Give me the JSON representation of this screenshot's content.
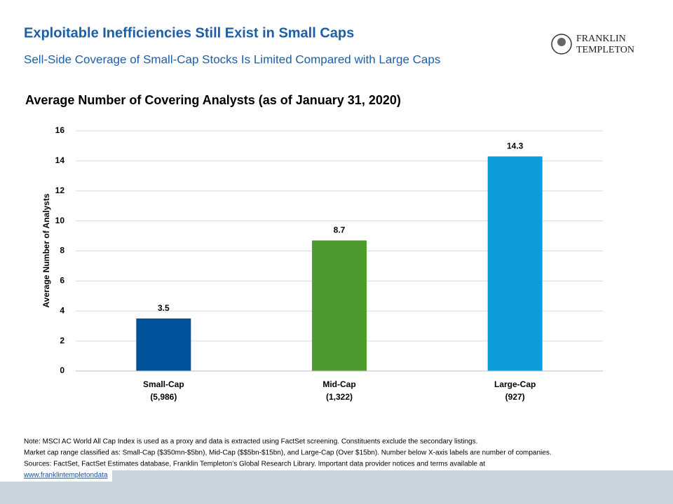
{
  "header": {
    "title": "Exploitable Inefficiencies Still Exist in Small Caps",
    "subtitle": "Sell-Side Coverage of Small-Cap Stocks Is Limited Compared with Large Caps",
    "logo_line1": "FRANKLIN",
    "logo_line2": "TEMPLETON"
  },
  "chart_data": {
    "type": "bar",
    "title": "Average Number of Covering Analysts (as of January 31, 2020)",
    "y_label": "Average Number of Analysts",
    "categories": [
      "Small-Cap",
      "Mid-Cap",
      "Large-Cap"
    ],
    "category_sublabels": [
      "(5,986)",
      "(1,322)",
      "(927)"
    ],
    "values": [
      3.5,
      8.7,
      14.3
    ],
    "colors": [
      "#00539b",
      "#4f9a2f",
      "#0d9cdc"
    ],
    "ylim": [
      0,
      16
    ],
    "yticks": [
      0,
      2,
      4,
      6,
      8,
      10,
      12,
      14,
      16
    ],
    "grid": true
  },
  "notes": [
    "Note: MSCI AC World All Cap Index is used as a proxy and data is extracted using FactSet screening. Constituents  exclude the secondary listings.",
    "Market cap range classified  as: Small-Cap ($350mn-$5bn), Mid-Cap ($$5bn-$15bn), and Large-Cap (Over $15bn). Number below X-axis labels are number of companies.",
    "Sources: FactSet, FactSet Estimates  database, Franklin Templeton’s  Global Research Library. Important data provider notices  and terms available at"
  ],
  "link": "www.franklintempletondata"
}
